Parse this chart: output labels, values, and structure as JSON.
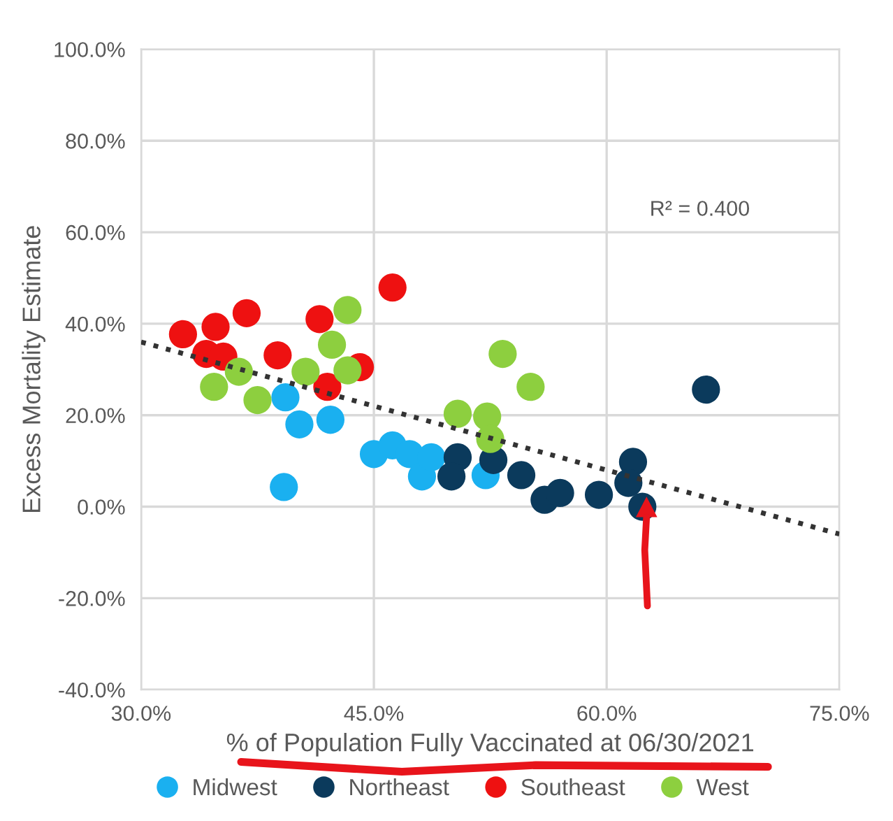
{
  "chart_data": {
    "type": "scatter",
    "xlabel": "% of Population Fully Vaccinated at 06/30/2021",
    "ylabel": "Excess Mortality Estimate",
    "xlim": [
      30,
      75
    ],
    "xticks": [
      {
        "value": 30,
        "label": "30.0%"
      },
      {
        "value": 45,
        "label": "45.0%"
      },
      {
        "value": 60,
        "label": "60.0%"
      },
      {
        "value": 75,
        "label": "75.0%"
      }
    ],
    "ylim": [
      -40,
      100
    ],
    "yticks": [
      {
        "value": -40,
        "label": "-40.0%"
      },
      {
        "value": -20,
        "label": "-20.0%"
      },
      {
        "value": 0,
        "label": "0.0%"
      },
      {
        "value": 20,
        "label": "20.0%"
      },
      {
        "value": 40,
        "label": "40.0%"
      },
      {
        "value": 60,
        "label": "60.0%"
      },
      {
        "value": 80,
        "label": "80.0%"
      },
      {
        "value": 100,
        "label": "100.0%"
      }
    ],
    "grid": true,
    "legend": "bottom",
    "marker": "circle",
    "annotations": [
      "R² = 0.400"
    ],
    "series": [
      {
        "type": "line",
        "color": "#333333",
        "line_style": "dotted",
        "marker": "none",
        "x": [
          30,
          75
        ],
        "values": [
          36,
          -6
        ]
      },
      {
        "name": "Midwest",
        "color": "#1ab0f0",
        "x": [
          39.3,
          40.2,
          42.2,
          39.2,
          45.0,
          46.2,
          47.3,
          48.1,
          48.7,
          52.2
        ],
        "values": [
          23.9,
          18.0,
          19.0,
          4.3,
          11.5,
          13.4,
          11.5,
          6.6,
          10.8,
          6.9
        ]
      },
      {
        "name": "Northeast",
        "color": "#0b3a5c",
        "x": [
          50.4,
          50.0,
          52.7,
          54.5,
          56.0,
          57.0,
          59.5,
          61.7,
          61.4,
          62.3,
          66.4
        ],
        "values": [
          10.8,
          6.6,
          10.2,
          6.9,
          1.5,
          3.0,
          2.6,
          9.8,
          5.2,
          0,
          25.6
        ]
      },
      {
        "name": "Southeast",
        "color": "#ee1111",
        "x": [
          32.7,
          34.8,
          36.8,
          34.2,
          35.3,
          38.8,
          41.5,
          42.0,
          44.1,
          46.2
        ],
        "values": [
          37.7,
          39.3,
          42.3,
          33.4,
          32.8,
          33.1,
          41.0,
          26.2,
          30.5,
          47.9
        ]
      },
      {
        "name": "West",
        "color": "#8dcf3f",
        "x": [
          34.7,
          36.3,
          37.5,
          40.6,
          42.3,
          43.3,
          43.3,
          53.3,
          55.1,
          50.4,
          52.3,
          52.5
        ],
        "values": [
          26.2,
          29.5,
          23.3,
          29.5,
          35.4,
          43.0,
          29.8,
          33.4,
          26.2,
          20.3,
          19.7,
          14.8
        ]
      }
    ]
  }
}
